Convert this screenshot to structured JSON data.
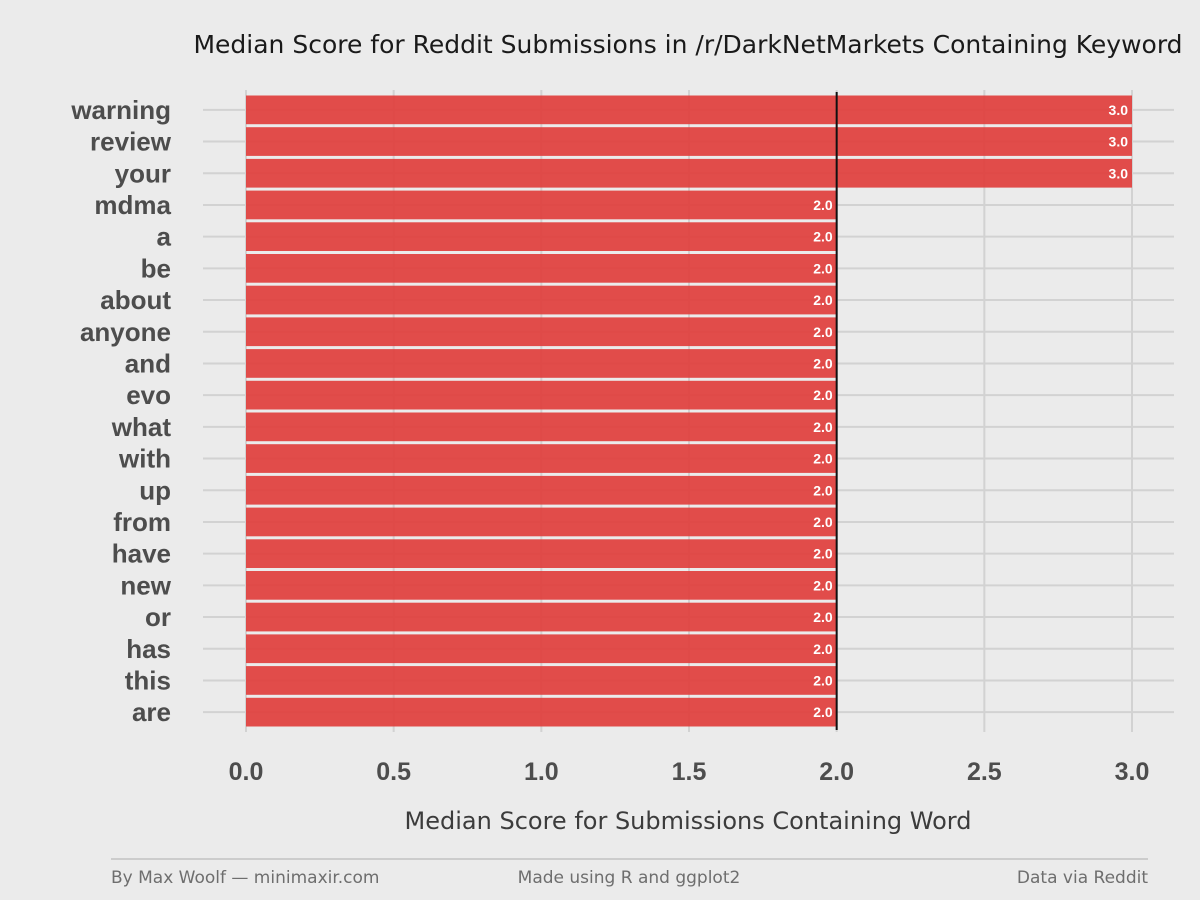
{
  "chart_data": {
    "type": "bar",
    "orientation": "horizontal",
    "title": "Median Score for Reddit Submissions in /r/DarkNetMarkets Containing Keyword",
    "xlabel": "Median Score for Submissions Containing Word",
    "ylabel": "",
    "categories": [
      "warning",
      "review",
      "your",
      "mdma",
      "a",
      "be",
      "about",
      "anyone",
      "and",
      "evo",
      "what",
      "with",
      "up",
      "from",
      "have",
      "new",
      "or",
      "has",
      "this",
      "are"
    ],
    "values": [
      3.0,
      3.0,
      3.0,
      2.0,
      2.0,
      2.0,
      2.0,
      2.0,
      2.0,
      2.0,
      2.0,
      2.0,
      2.0,
      2.0,
      2.0,
      2.0,
      2.0,
      2.0,
      2.0,
      2.0
    ],
    "value_labels": [
      "3.0",
      "3.0",
      "3.0",
      "2.0",
      "2.0",
      "2.0",
      "2.0",
      "2.0",
      "2.0",
      "2.0",
      "2.0",
      "2.0",
      "2.0",
      "2.0",
      "2.0",
      "2.0",
      "2.0",
      "2.0",
      "2.0",
      "2.0"
    ],
    "xlim": [
      0,
      3.0
    ],
    "xticks": [
      0.0,
      0.5,
      1.0,
      1.5,
      2.0,
      2.5,
      3.0
    ],
    "xtick_labels": [
      "0.0",
      "0.5",
      "1.0",
      "1.5",
      "2.0",
      "2.5",
      "3.0"
    ],
    "reference_line": 2.0,
    "bar_color": "#e0403d",
    "reference_line_color": "#111111",
    "grid": true,
    "background_color": "#ebebeb",
    "footer": {
      "left": "By Max Woolf — minimaxir.com",
      "center": "Made using R and ggplot2",
      "right": "Data via Reddit"
    }
  }
}
